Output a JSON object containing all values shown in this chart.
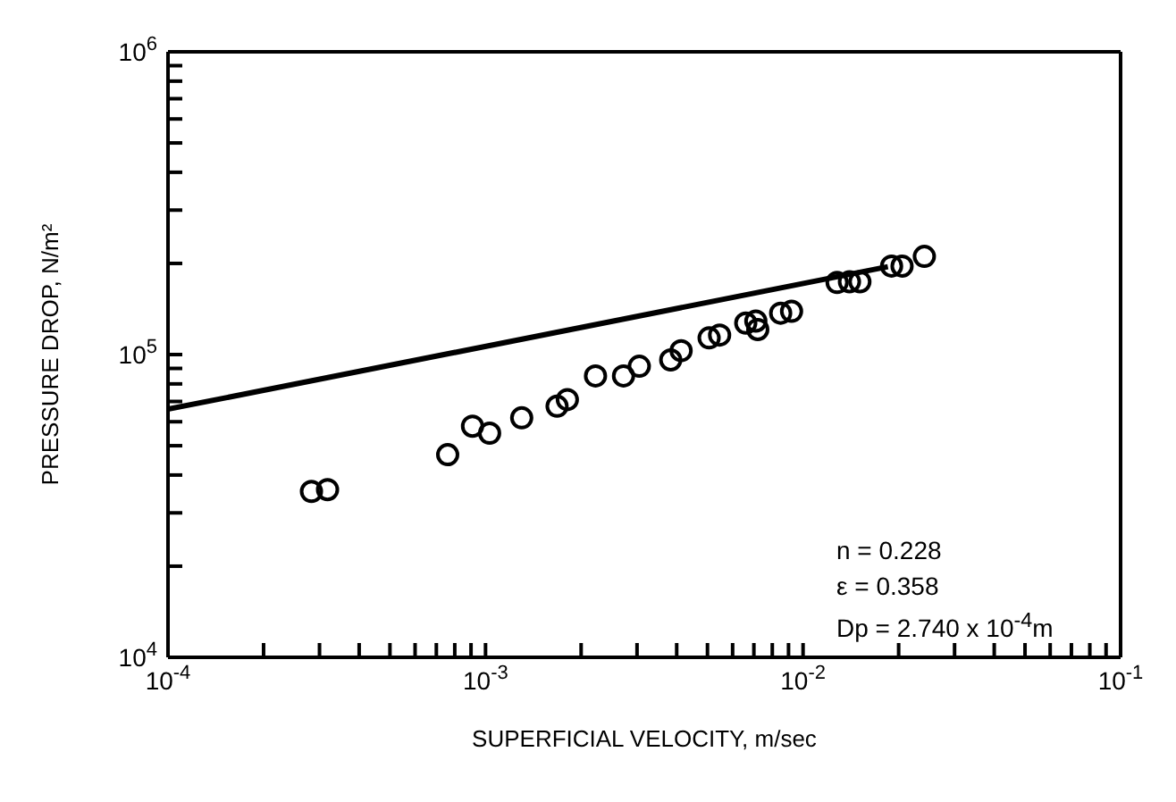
{
  "chart_data": {
    "type": "scatter",
    "xlabel": "SUPERFICIAL VELOCITY, m/sec",
    "ylabel": "PRESSURE DROP, N/m²",
    "log": "xy",
    "grid": false,
    "legend": false,
    "marker": "circle",
    "xlim": [
      0.0001,
      0.1
    ],
    "ylim": [
      10000,
      1000000
    ],
    "xticks": [
      {
        "value": 0.0001,
        "label": "10$^{-4}$"
      },
      {
        "value": 0.0002,
        "label": null
      },
      {
        "value": 0.0003,
        "label": null
      },
      {
        "value": 0.0004,
        "label": null
      },
      {
        "value": 0.0005,
        "label": null
      },
      {
        "value": 0.0006,
        "label": null
      },
      {
        "value": 0.0007,
        "label": null
      },
      {
        "value": 0.0008,
        "label": null
      },
      {
        "value": 0.0009,
        "label": null
      },
      {
        "value": 0.001,
        "label": "10$^{-3}$"
      },
      {
        "value": 0.002,
        "label": null
      },
      {
        "value": 0.003,
        "label": null
      },
      {
        "value": 0.004,
        "label": null
      },
      {
        "value": 0.005,
        "label": null
      },
      {
        "value": 0.006,
        "label": null
      },
      {
        "value": 0.007,
        "label": null
      },
      {
        "value": 0.008,
        "label": null
      },
      {
        "value": 0.009,
        "label": null
      },
      {
        "value": 0.01,
        "label": "10$^{-2}$"
      },
      {
        "value": 0.02,
        "label": null
      },
      {
        "value": 0.03,
        "label": null
      },
      {
        "value": 0.04,
        "label": null
      },
      {
        "value": 0.05,
        "label": null
      },
      {
        "value": 0.06,
        "label": null
      },
      {
        "value": 0.07,
        "label": null
      },
      {
        "value": 0.08,
        "label": null
      },
      {
        "value": 0.09,
        "label": null
      },
      {
        "value": 0.1,
        "label": "10$^{-1}$"
      }
    ],
    "yticks": [
      {
        "value": 10000,
        "label": "10$^{4}$"
      },
      {
        "value": 20000,
        "label": null
      },
      {
        "value": 30000,
        "label": null
      },
      {
        "value": 40000,
        "label": null
      },
      {
        "value": 50000,
        "label": null
      },
      {
        "value": 60000,
        "label": null
      },
      {
        "value": 70000,
        "label": null
      },
      {
        "value": 80000,
        "label": null
      },
      {
        "value": 90000,
        "label": null
      },
      {
        "value": 100000,
        "label": "10$^{5}$"
      },
      {
        "value": 200000,
        "label": null
      },
      {
        "value": 300000,
        "label": null
      },
      {
        "value": 400000,
        "label": null
      },
      {
        "value": 500000,
        "label": null
      },
      {
        "value": 600000,
        "label": null
      },
      {
        "value": 700000,
        "label": null
      },
      {
        "value": 800000,
        "label": null
      },
      {
        "value": 900000,
        "label": null
      },
      {
        "value": 1000000,
        "label": "10$^{6}$"
      }
    ],
    "series": [
      {
        "type": "scatter",
        "color": "#000000",
        "x": [
          0.000283,
          0.000318,
          0.00076,
          0.00091,
          0.00103,
          0.0013,
          0.00168,
          0.00181,
          0.00222,
          0.00272,
          0.00305,
          0.00383,
          0.00413,
          0.00506,
          0.00546,
          0.0066,
          0.0071,
          0.0072,
          0.0085,
          0.0092,
          0.0128,
          0.014,
          0.0151,
          0.019,
          0.0205,
          0.0241
        ],
        "values": [
          35300,
          35800,
          46700,
          58000,
          55000,
          61800,
          67500,
          71000,
          85000,
          85000,
          91500,
          96000,
          103000,
          113500,
          116000,
          127000,
          129000,
          121000,
          137000,
          139000,
          173000,
          174000,
          174000,
          196000,
          196000,
          211000
        ]
      },
      {
        "type": "line",
        "color": "#000000",
        "marker": "none",
        "line_style": "solid",
        "x": [
          0.0001,
          0.0185
        ],
        "values": [
          66000,
          195000
        ]
      }
    ],
    "annotations": [
      "n = 0.228",
      "ε = 0.358",
      "Dp = 2.740 x 10$^{-4}$m"
    ]
  }
}
